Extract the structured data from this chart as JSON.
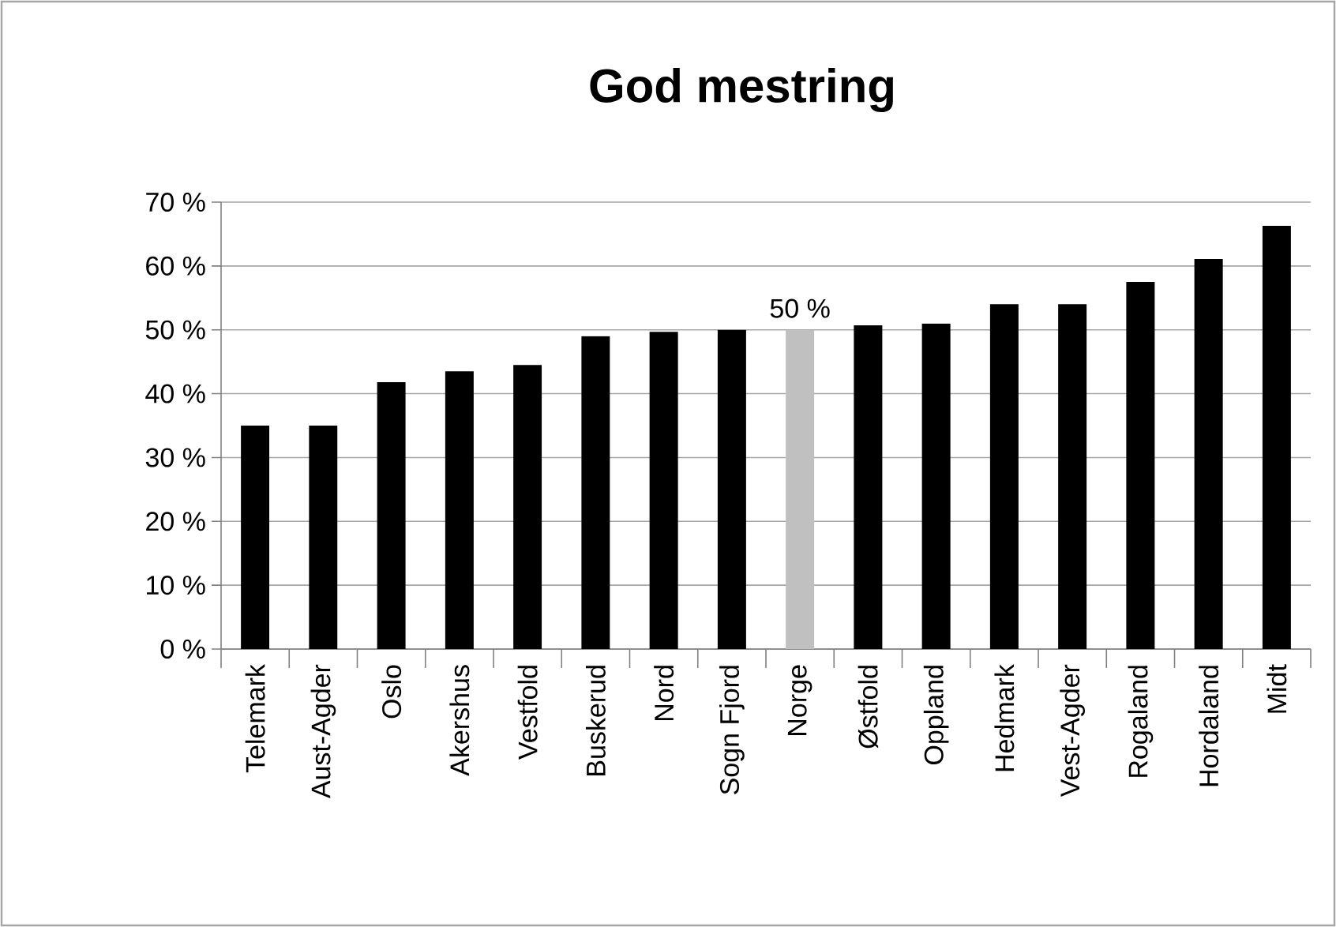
{
  "chart_data": {
    "type": "bar",
    "title": "God mestring",
    "categories": [
      "Telemark",
      "Aust-Agder",
      "Oslo",
      "Akershus",
      "Vestfold",
      "Buskerud",
      "Nord",
      "Sogn Fjord",
      "Norge",
      "Østfold",
      "Oppland",
      "Hedmark",
      "Vest-Agder",
      "Rogaland",
      "Hordaland",
      "Midt"
    ],
    "values": [
      35,
      35,
      41.8,
      43.5,
      44.5,
      49,
      49.7,
      50,
      50,
      50.7,
      51,
      54,
      54,
      57.5,
      61.1,
      66.3
    ],
    "colors": [
      "#000000",
      "#000000",
      "#000000",
      "#000000",
      "#000000",
      "#000000",
      "#000000",
      "#000000",
      "#c0c0c0",
      "#000000",
      "#000000",
      "#000000",
      "#000000",
      "#000000",
      "#000000",
      "#000000"
    ],
    "value_labels": [
      null,
      null,
      null,
      null,
      null,
      null,
      null,
      null,
      "50 %",
      null,
      null,
      null,
      null,
      null,
      null,
      null
    ],
    "ylim": [
      0,
      70
    ],
    "yticks": [
      {
        "value": 0,
        "label": "0 %"
      },
      {
        "value": 10,
        "label": "10 %"
      },
      {
        "value": 20,
        "label": "20 %"
      },
      {
        "value": 30,
        "label": "30 %"
      },
      {
        "value": 40,
        "label": "40 %"
      },
      {
        "value": 50,
        "label": "50 %"
      },
      {
        "value": 60,
        "label": "60 %"
      },
      {
        "value": 70,
        "label": "70 %"
      }
    ],
    "grid": "y"
  }
}
